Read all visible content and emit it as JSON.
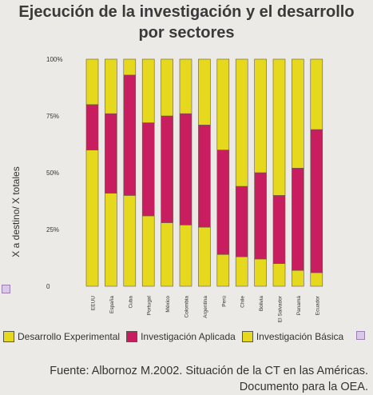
{
  "title_lines": [
    "Ejecución de la investigación y el desarrollo",
    "por sectores"
  ],
  "source_lines": [
    "Fuente: Albornoz M.2002. Situación de la CT en las Américas.",
    "Documento para la OEA."
  ],
  "chart_data": {
    "type": "bar",
    "stacked": true,
    "ylabel": "X a destino/ X totales",
    "ylim": [
      0,
      100
    ],
    "yticks": [
      {
        "value": 0,
        "label": "0"
      },
      {
        "value": 25,
        "label": "25%"
      },
      {
        "value": 50,
        "label": "50%"
      },
      {
        "value": 75,
        "label": "75%"
      },
      {
        "value": 100,
        "label": "100%"
      }
    ],
    "grid": false,
    "legend_position": "bottom",
    "categories": [
      "EEUU",
      "España",
      "Cuba",
      "Portugal",
      "México",
      "Colombia",
      "Argentina",
      "Perú",
      "Chile",
      "Bolivia",
      "El Salvador",
      "Panamá",
      "Ecuador"
    ],
    "series": [
      {
        "name": "Desarrollo Experimental",
        "color": "#e6d81c",
        "values": [
          60,
          41,
          40,
          31,
          28,
          27,
          26,
          14,
          13,
          12,
          10,
          7,
          6
        ]
      },
      {
        "name": "Investigación Aplicada",
        "color": "#c81d5e",
        "values": [
          20,
          35,
          53,
          41,
          47,
          49,
          45,
          46,
          31,
          38,
          30,
          45,
          63
        ]
      },
      {
        "name": "Investigación Básica",
        "color": "#e6d81c",
        "values": [
          20,
          24,
          7,
          28,
          25,
          24,
          29,
          40,
          56,
          50,
          60,
          48,
          31
        ]
      }
    ]
  }
}
